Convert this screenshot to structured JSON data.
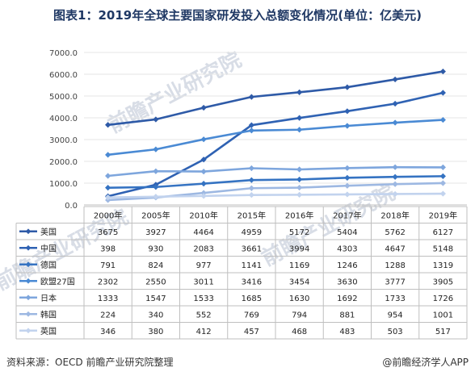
{
  "title": "图表1：2019年全球主要国家研发投入总额变化情况(单位：亿美元)",
  "footer": {
    "source": "资料来源：OECD 前瞻产业研究院整理",
    "brand": "@前瞻经济学人APP"
  },
  "watermark": "前瞻产业研究院",
  "chart_data": {
    "type": "line",
    "title": "图表1：2019年全球主要国家研发投入总额变化情况(单位：亿美元)",
    "categories": [
      "2000年",
      "2005年",
      "2010年",
      "2015年",
      "2016年",
      "2017年",
      "2018年",
      "2019年"
    ],
    "ylim": [
      0,
      7000
    ],
    "yticks": [
      "0.0",
      "1000.0",
      "2000.0",
      "3000.0",
      "4000.0",
      "5000.0",
      "6000.0",
      "7000.0"
    ],
    "grid": true,
    "legend": "data-table",
    "series": [
      {
        "name": "美国",
        "color": "#2e5aa7",
        "values": [
          3675,
          3927,
          4464,
          4959,
          5172,
          5404,
          5762,
          6127
        ]
      },
      {
        "name": "中国",
        "color": "#2f62b3",
        "values": [
          398,
          930,
          2083,
          3661,
          3994,
          4303,
          4647,
          5148
        ]
      },
      {
        "name": "德国",
        "color": "#3573c2",
        "values": [
          791,
          824,
          977,
          1141,
          1169,
          1246,
          1288,
          1319
        ]
      },
      {
        "name": "欧盟27国",
        "color": "#4a8ad4",
        "values": [
          2302,
          2550,
          3011,
          3416,
          3454,
          3630,
          3777,
          3905
        ]
      },
      {
        "name": "日本",
        "color": "#7ea6dd",
        "values": [
          1333,
          1547,
          1533,
          1685,
          1630,
          1692,
          1733,
          1726
        ]
      },
      {
        "name": "韩国",
        "color": "#9db8e2",
        "values": [
          224,
          340,
          552,
          769,
          794,
          881,
          954,
          1001
        ]
      },
      {
        "name": "英国",
        "color": "#c2d3ee",
        "values": [
          346,
          380,
          412,
          457,
          468,
          483,
          503,
          517
        ]
      }
    ]
  }
}
